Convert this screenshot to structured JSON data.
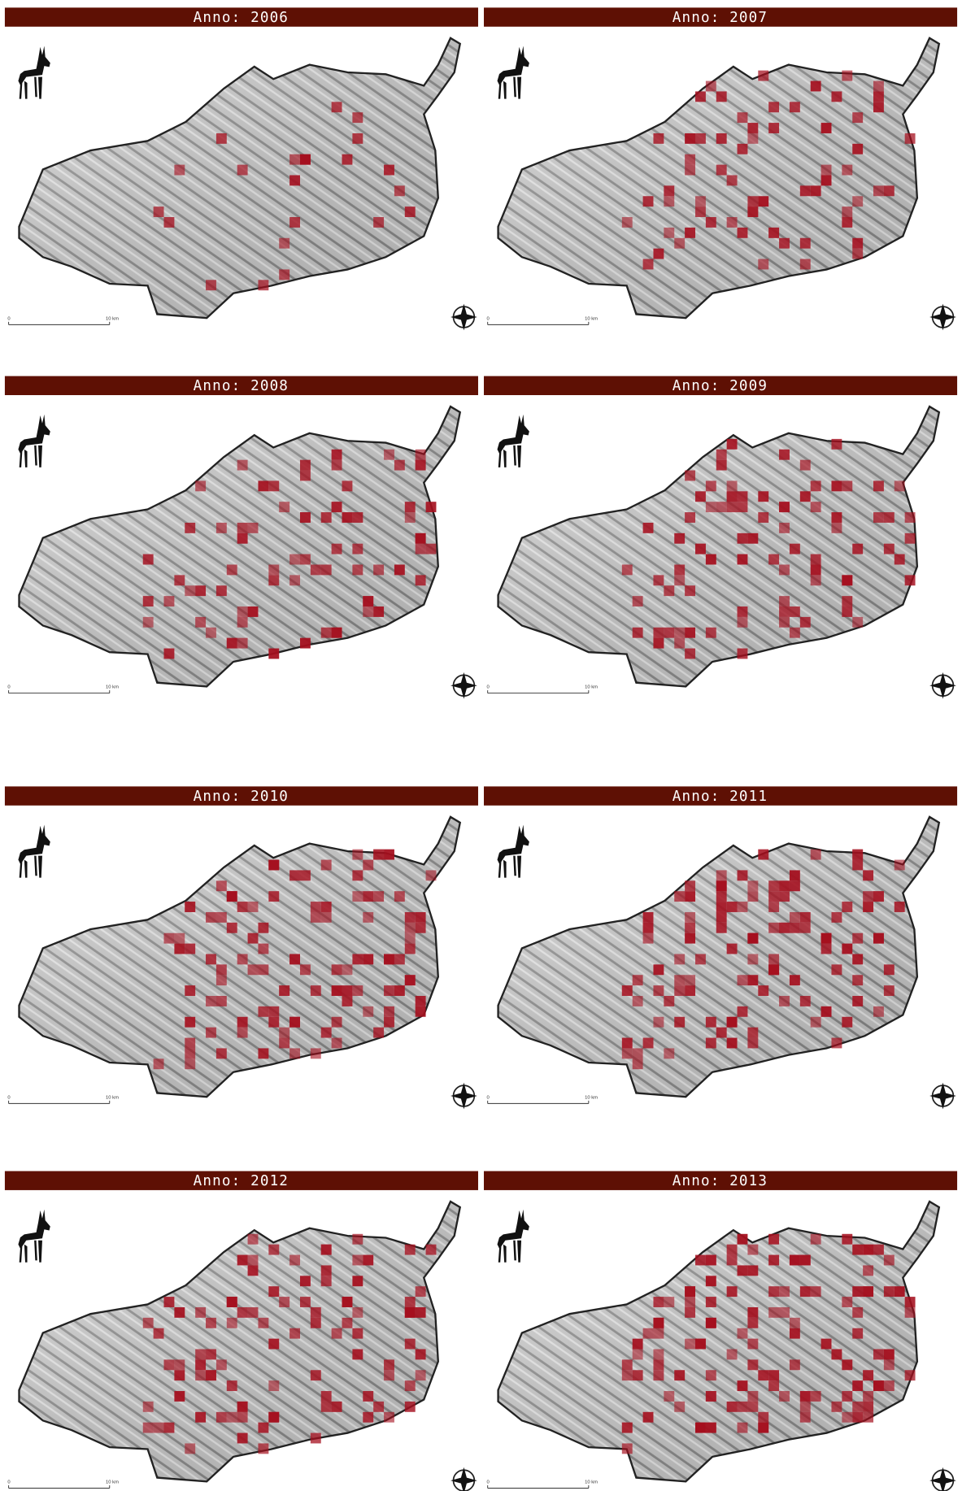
{
  "panels": [
    {
      "title": "Anno: 2006",
      "scale_start": "0",
      "scale_end": "10 km"
    },
    {
      "title": "Anno: 2007",
      "scale_start": "0",
      "scale_end": "10 km"
    },
    {
      "title": "Anno: 2008",
      "scale_start": "0",
      "scale_end": "10 km"
    },
    {
      "title": "Anno: 2009",
      "scale_start": "0",
      "scale_end": "10 km"
    },
    {
      "title": "Anno: 2010",
      "scale_start": "0",
      "scale_end": "10 km"
    },
    {
      "title": "Anno: 2011",
      "scale_start": "0",
      "scale_end": "10 km"
    },
    {
      "title": "Anno: 2012",
      "scale_start": "0",
      "scale_end": "10 km"
    },
    {
      "title": "Anno: 2013",
      "scale_start": "0",
      "scale_end": "10 km"
    }
  ]
}
